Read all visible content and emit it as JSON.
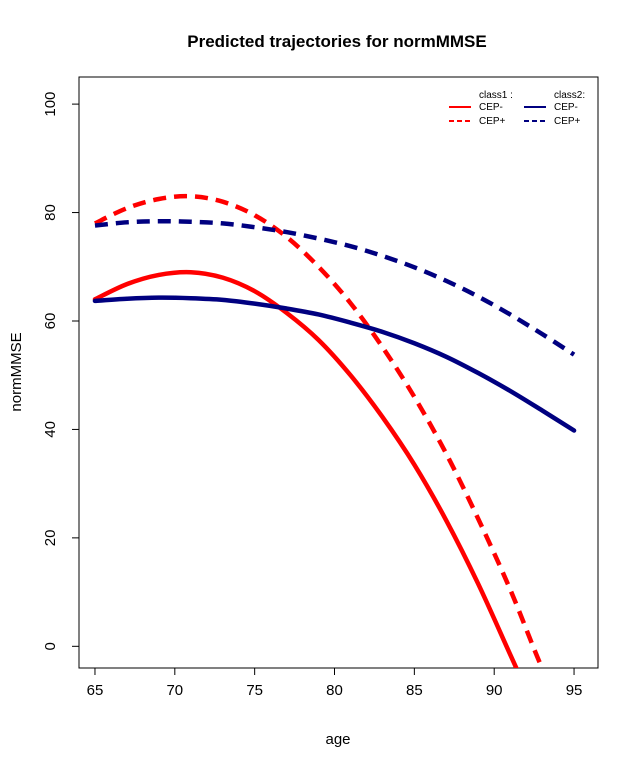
{
  "chart_data": {
    "type": "line",
    "title": "Predicted trajectories for normMMSE",
    "xlabel": "age",
    "ylabel": "normMMSE",
    "xlim": [
      64,
      96.5
    ],
    "ylim": [
      -4,
      105
    ],
    "x_ticks": [
      65,
      70,
      75,
      80,
      85,
      90,
      95
    ],
    "x_tick_labels": [
      "65",
      "70",
      "75",
      "80",
      "85",
      "90",
      "95"
    ],
    "y_ticks": [
      0,
      20,
      40,
      60,
      80,
      100
    ],
    "y_tick_labels": [
      "0",
      "20",
      "40",
      "60",
      "80",
      "100"
    ],
    "grid": false,
    "legend": {
      "placement": "top-right",
      "groups": [
        {
          "header": "class1 :",
          "entries": [
            {
              "label": "CEP-",
              "series": 0
            },
            {
              "label": "CEP+",
              "series": 1
            }
          ]
        },
        {
          "header": "class2:",
          "entries": [
            {
              "label": "CEP-",
              "series": 2
            },
            {
              "label": "CEP+",
              "series": 3
            }
          ]
        }
      ]
    },
    "series": [
      {
        "color": "#ff0000",
        "dash": "solid",
        "x": [
          65,
          67,
          69,
          71,
          73,
          75,
          77,
          79,
          81,
          83,
          85,
          87,
          89,
          91,
          92
        ],
        "y": [
          64,
          66.8,
          68.5,
          69,
          68,
          65.5,
          61.5,
          56.5,
          50,
          42.3,
          33.5,
          23.2,
          11.5,
          -1.5,
          -8
        ]
      },
      {
        "color": "#ff0000",
        "dash": "dashed",
        "x": [
          65,
          67,
          69,
          71,
          73,
          75,
          77,
          79,
          81,
          83,
          85,
          87,
          89,
          91,
          93,
          94
        ],
        "y": [
          78,
          80.8,
          82.5,
          83,
          82,
          79.5,
          75.5,
          70,
          63.3,
          55.2,
          46,
          35.5,
          23.5,
          10.5,
          -4,
          -9
        ]
      },
      {
        "color": "#000080",
        "dash": "solid",
        "x": [
          65,
          67,
          69,
          71,
          73,
          75,
          77,
          79,
          81,
          83,
          85,
          87,
          89,
          91,
          93,
          95
        ],
        "y": [
          63.7,
          64.1,
          64.3,
          64.2,
          63.9,
          63.2,
          62.3,
          61.2,
          59.7,
          58,
          55.9,
          53.4,
          50.4,
          47.1,
          43.5,
          39.8
        ]
      },
      {
        "color": "#000080",
        "dash": "dashed",
        "x": [
          65,
          67,
          69,
          71,
          73,
          75,
          77,
          79,
          81,
          83,
          85,
          87,
          89,
          91,
          93,
          95
        ],
        "y": [
          77.6,
          78.2,
          78.4,
          78.3,
          78,
          77.3,
          76.4,
          75.2,
          73.8,
          72,
          69.9,
          67.4,
          64.5,
          61.2,
          57.6,
          53.8
        ]
      }
    ]
  }
}
